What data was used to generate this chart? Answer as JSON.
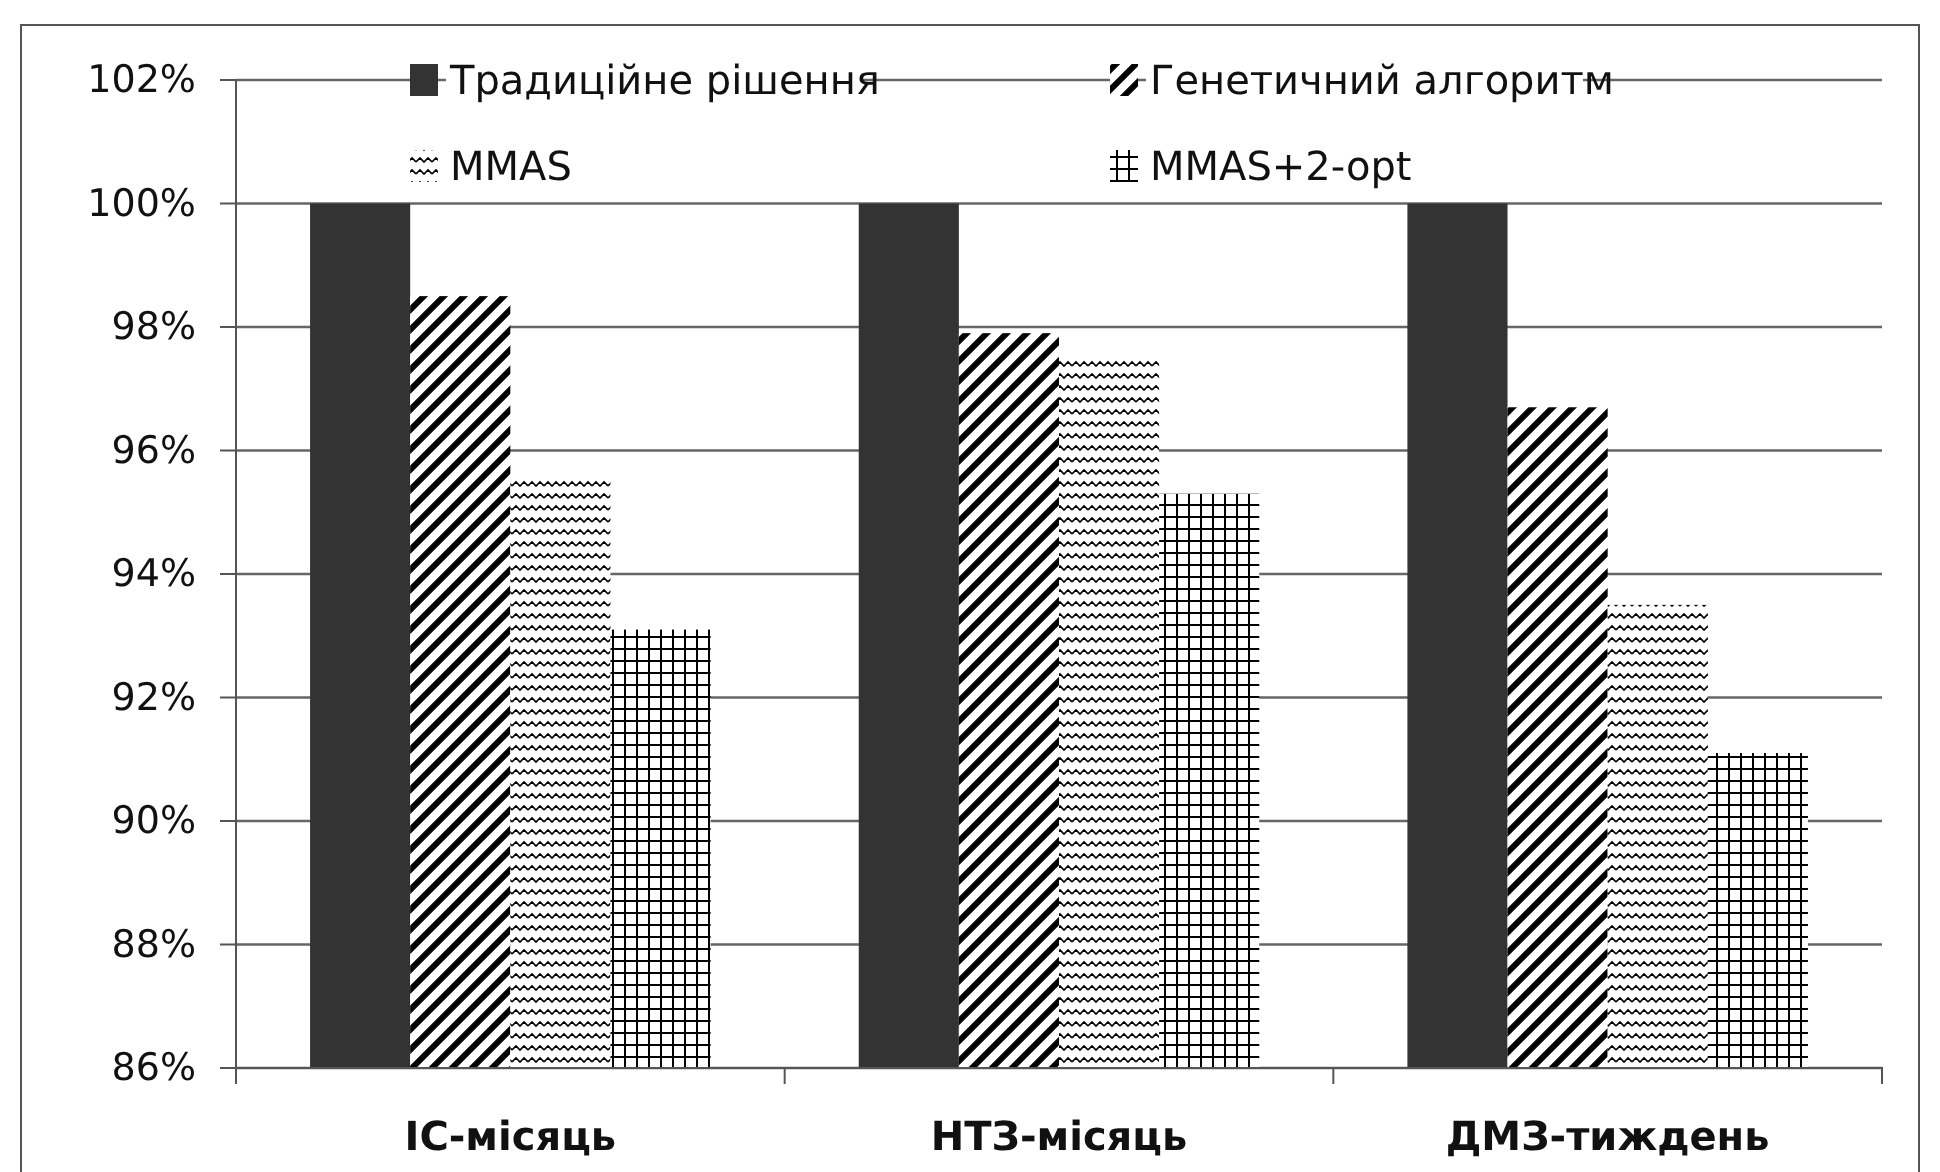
{
  "chart_data": {
    "type": "bar",
    "categories": [
      "ІС-місяць",
      "НТЗ-місяць",
      "ДМЗ-тиждень"
    ],
    "series": [
      {
        "name": "Традиційне рішення",
        "color": "#333333",
        "values": [
          100,
          100,
          100
        ]
      },
      {
        "name": "Генетичний алгоритм",
        "color": "#000000",
        "values": [
          98.5,
          97.9,
          96.7
        ]
      },
      {
        "name": "MMAS",
        "color": "#000000",
        "values": [
          95.6,
          97.5,
          93.5
        ]
      },
      {
        "name": "MMAS+2-opt",
        "color": "#000000",
        "values": [
          93.1,
          95.3,
          91.1
        ]
      }
    ],
    "ylim": [
      86,
      102
    ],
    "yticks": [
      {
        "value": 86,
        "label": "86%"
      },
      {
        "value": 88,
        "label": "88%"
      },
      {
        "value": 90,
        "label": "90%"
      },
      {
        "value": 92,
        "label": "92%"
      },
      {
        "value": 94,
        "label": "94%"
      },
      {
        "value": 96,
        "label": "96%"
      },
      {
        "value": 98,
        "label": "98%"
      },
      {
        "value": 100,
        "label": "100%"
      },
      {
        "value": 102,
        "label": "102%"
      }
    ],
    "grid": "y",
    "legend": "top"
  }
}
